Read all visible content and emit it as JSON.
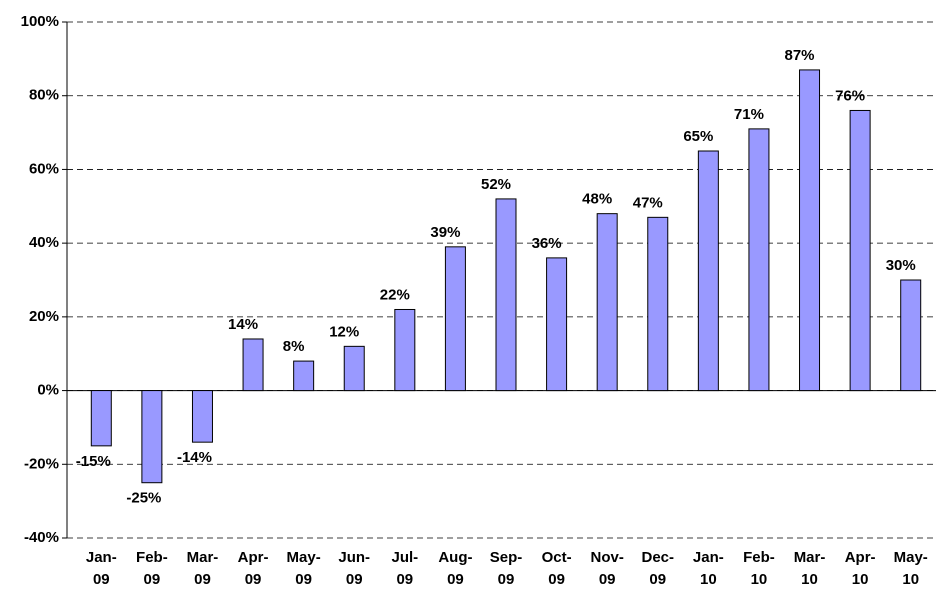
{
  "chart_data": {
    "type": "bar",
    "categories": [
      "Jan-09",
      "Feb-09",
      "Mar-09",
      "Apr-09",
      "May-09",
      "Jun-09",
      "Jul-09",
      "Aug-09",
      "Sep-09",
      "Oct-09",
      "Nov-09",
      "Dec-09",
      "Jan-10",
      "Feb-10",
      "Mar-10",
      "Apr-10",
      "May-10"
    ],
    "values": [
      -15,
      -25,
      -14,
      14,
      8,
      12,
      22,
      39,
      52,
      36,
      48,
      47,
      65,
      71,
      87,
      76,
      30
    ],
    "value_labels": [
      "-15%",
      "-25%",
      "-14%",
      "14%",
      "8%",
      "12%",
      "22%",
      "39%",
      "52%",
      "36%",
      "48%",
      "47%",
      "65%",
      "71%",
      "87%",
      "76%",
      "30%"
    ],
    "color": "#9999ff",
    "ylim": [
      -40,
      100
    ],
    "yticks": [
      {
        "value": -40,
        "label": "-40%"
      },
      {
        "value": -20,
        "label": "-20%"
      },
      {
        "value": 0,
        "label": "0%"
      },
      {
        "value": 20,
        "label": "20%"
      },
      {
        "value": 40,
        "label": "40%"
      },
      {
        "value": 60,
        "label": "60%"
      },
      {
        "value": 80,
        "label": "80%"
      },
      {
        "value": 100,
        "label": "100%"
      }
    ],
    "grid": true
  }
}
